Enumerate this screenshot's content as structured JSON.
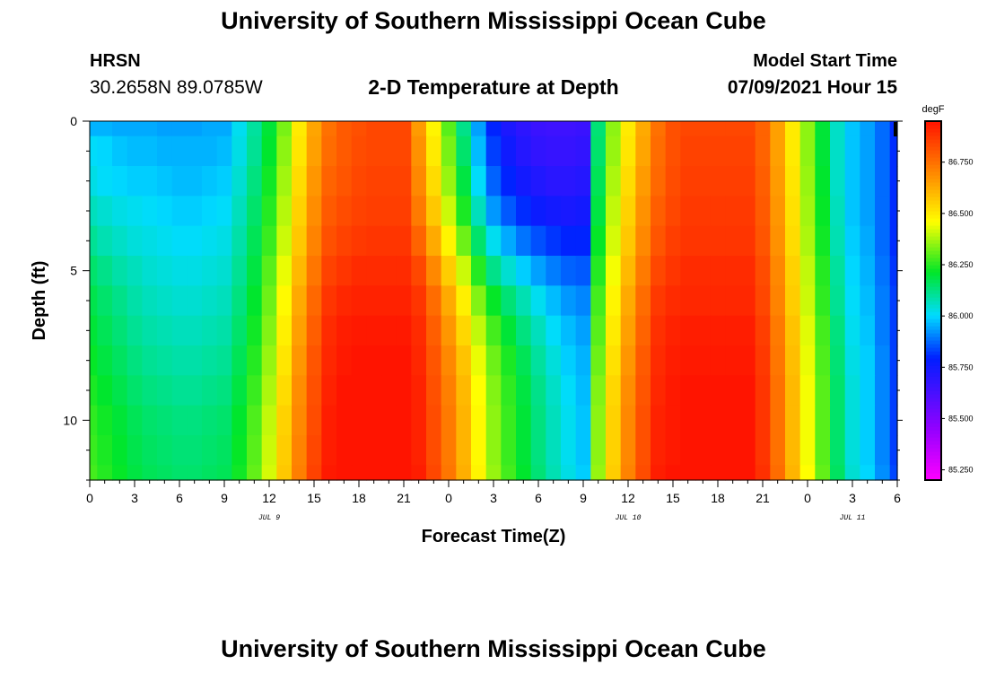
{
  "header": {
    "title": "University of Southern Mississippi Ocean Cube",
    "station": "HRSN",
    "location": "30.2658N  89.0785W",
    "product": "2-D Temperature at Depth",
    "model_label": "Model Start Time",
    "model_time": "07/09/2021 Hour 15"
  },
  "footer": {
    "title": "University of Southern Mississippi Ocean Cube"
  },
  "chart_data": {
    "type": "heatmap",
    "title": "2-D Temperature at Depth",
    "xlabel": "Forecast Time(Z)",
    "ylabel": "Depth (ft)",
    "x_ticks": [
      "0",
      "3",
      "6",
      "9",
      "12",
      "15",
      "18",
      "21",
      "0",
      "3",
      "6",
      "9",
      "12",
      "15",
      "18",
      "21",
      "0",
      "3",
      "6"
    ],
    "x_hours": [
      0,
      3,
      6,
      9,
      12,
      15,
      18,
      21,
      24,
      27,
      30,
      33,
      36,
      39,
      42,
      45,
      48,
      51,
      54
    ],
    "x_range": [
      0,
      54
    ],
    "y_ticks": [
      "0",
      "5",
      "10"
    ],
    "y_values": [
      0,
      5,
      10
    ],
    "y_range": [
      0,
      12
    ],
    "date_labels": [
      {
        "text": "JUL 9",
        "hour": 12
      },
      {
        "text": "JUL 10",
        "hour": 36
      },
      {
        "text": "JUL 11",
        "hour": 51
      }
    ],
    "colorbar": {
      "unit": "degF",
      "min": 85.2,
      "max": 86.95,
      "ticks": [
        "85.250",
        "85.500",
        "85.750",
        "86.000",
        "86.250",
        "86.500",
        "86.750"
      ],
      "tick_values": [
        85.25,
        85.5,
        85.75,
        86.0,
        86.25,
        86.5,
        86.75
      ]
    },
    "grid": {
      "hours": [
        0,
        1,
        2,
        3,
        4,
        5,
        6,
        7,
        8,
        9,
        10,
        11,
        12,
        13,
        14,
        15,
        16,
        17,
        18,
        19,
        20,
        21,
        22,
        23,
        24,
        25,
        26,
        27,
        28,
        29,
        30,
        31,
        32,
        33,
        34,
        35,
        36,
        37,
        38,
        39,
        40,
        41,
        42,
        43,
        44,
        45,
        46,
        47,
        48,
        49,
        50,
        51,
        52,
        53,
        54
      ],
      "depths": [
        0,
        1,
        2,
        3,
        4,
        5,
        6,
        7,
        8,
        9,
        10,
        11,
        12
      ],
      "values": [
        [
          85.96,
          85.96,
          85.95,
          85.95,
          85.95,
          85.94,
          85.94,
          85.94,
          85.95,
          85.95,
          86.02,
          86.1,
          86.2,
          86.33,
          86.5,
          86.64,
          86.75,
          86.8,
          86.82,
          86.84,
          86.84,
          86.84,
          86.66,
          86.48,
          86.3,
          86.12,
          85.94,
          85.8,
          85.73,
          85.69,
          85.66,
          85.65,
          85.65,
          85.66,
          86.14,
          86.35,
          86.5,
          86.63,
          86.75,
          86.82,
          86.84,
          86.84,
          86.84,
          86.84,
          86.84,
          86.78,
          86.65,
          86.5,
          86.35,
          86.2,
          86.06,
          85.98,
          85.94,
          85.88,
          85.81
        ],
        [
          86.01,
          86.0,
          85.98,
          85.97,
          85.97,
          85.96,
          85.96,
          85.96,
          85.96,
          85.97,
          86.03,
          86.11,
          86.21,
          86.35,
          86.51,
          86.65,
          86.76,
          86.8,
          86.83,
          86.84,
          86.84,
          86.84,
          86.68,
          86.5,
          86.33,
          86.15,
          85.97,
          85.83,
          85.76,
          85.71,
          85.68,
          85.67,
          85.67,
          85.68,
          86.15,
          86.36,
          86.51,
          86.64,
          86.76,
          86.82,
          86.85,
          86.85,
          86.85,
          86.85,
          86.85,
          86.78,
          86.65,
          86.5,
          86.35,
          86.2,
          86.06,
          85.98,
          85.94,
          85.88,
          85.81
        ],
        [
          86.03,
          86.01,
          86.0,
          85.99,
          85.99,
          85.98,
          85.97,
          85.97,
          85.98,
          85.99,
          86.05,
          86.13,
          86.23,
          86.37,
          86.53,
          86.67,
          86.78,
          86.81,
          86.84,
          86.85,
          86.85,
          86.85,
          86.7,
          86.53,
          86.36,
          86.19,
          86.01,
          85.87,
          85.8,
          85.75,
          85.72,
          85.7,
          85.7,
          85.71,
          86.17,
          86.38,
          86.53,
          86.66,
          86.77,
          86.83,
          86.86,
          86.86,
          86.86,
          86.86,
          86.86,
          86.79,
          86.66,
          86.51,
          86.36,
          86.21,
          86.06,
          85.98,
          85.94,
          85.88,
          85.81
        ],
        [
          86.07,
          86.05,
          86.03,
          86.02,
          86.01,
          86.0,
          85.99,
          85.99,
          86.0,
          86.01,
          86.07,
          86.15,
          86.25,
          86.39,
          86.55,
          86.69,
          86.8,
          86.83,
          86.85,
          86.86,
          86.86,
          86.86,
          86.73,
          86.57,
          86.41,
          86.24,
          86.07,
          85.93,
          85.86,
          85.81,
          85.77,
          85.75,
          85.74,
          85.75,
          86.19,
          86.4,
          86.55,
          86.68,
          86.79,
          86.84,
          86.87,
          86.87,
          86.87,
          86.87,
          86.87,
          86.8,
          86.67,
          86.52,
          86.37,
          86.22,
          86.07,
          85.98,
          85.94,
          85.88,
          85.81
        ],
        [
          86.11,
          86.08,
          86.06,
          86.04,
          86.03,
          86.02,
          86.01,
          86.01,
          86.02,
          86.03,
          86.09,
          86.17,
          86.27,
          86.41,
          86.57,
          86.71,
          86.82,
          86.85,
          86.87,
          86.88,
          86.88,
          86.88,
          86.78,
          86.63,
          86.48,
          86.32,
          86.15,
          86.02,
          85.95,
          85.89,
          85.85,
          85.82,
          85.8,
          85.8,
          86.22,
          86.42,
          86.57,
          86.7,
          86.81,
          86.86,
          86.88,
          86.88,
          86.88,
          86.88,
          86.88,
          86.81,
          86.68,
          86.53,
          86.38,
          86.23,
          86.08,
          85.99,
          85.95,
          85.88,
          85.81
        ],
        [
          86.15,
          86.12,
          86.09,
          86.07,
          86.05,
          86.04,
          86.03,
          86.03,
          86.04,
          86.05,
          86.11,
          86.19,
          86.3,
          86.44,
          86.6,
          86.74,
          86.85,
          86.88,
          86.9,
          86.9,
          86.9,
          86.9,
          86.84,
          86.7,
          86.56,
          86.41,
          86.25,
          86.12,
          86.05,
          85.99,
          85.94,
          85.9,
          85.87,
          85.86,
          86.25,
          86.45,
          86.6,
          86.73,
          86.84,
          86.88,
          86.9,
          86.9,
          86.9,
          86.9,
          86.9,
          86.83,
          86.7,
          86.55,
          86.4,
          86.25,
          86.1,
          86.0,
          85.96,
          85.89,
          85.82
        ],
        [
          86.18,
          86.15,
          86.12,
          86.09,
          86.07,
          86.06,
          86.05,
          86.05,
          86.06,
          86.07,
          86.13,
          86.21,
          86.32,
          86.47,
          86.63,
          86.77,
          86.88,
          86.91,
          86.92,
          86.92,
          86.92,
          86.92,
          86.88,
          86.76,
          86.63,
          86.49,
          86.34,
          86.22,
          86.14,
          86.08,
          86.02,
          85.97,
          85.93,
          85.91,
          86.28,
          86.48,
          86.63,
          86.76,
          86.87,
          86.9,
          86.91,
          86.91,
          86.91,
          86.91,
          86.91,
          86.84,
          86.71,
          86.56,
          86.41,
          86.26,
          86.11,
          86.01,
          85.97,
          85.9,
          85.83
        ],
        [
          86.2,
          86.17,
          86.14,
          86.11,
          86.09,
          86.08,
          86.07,
          86.07,
          86.08,
          86.09,
          86.15,
          86.23,
          86.34,
          86.49,
          86.65,
          86.79,
          86.9,
          86.93,
          86.94,
          86.94,
          86.94,
          86.94,
          86.9,
          86.79,
          86.67,
          86.54,
          86.4,
          86.28,
          86.2,
          86.13,
          86.07,
          86.01,
          85.97,
          85.94,
          86.3,
          86.5,
          86.65,
          86.78,
          86.89,
          86.92,
          86.93,
          86.93,
          86.93,
          86.93,
          86.93,
          86.86,
          86.73,
          86.58,
          86.43,
          86.28,
          86.13,
          86.02,
          85.98,
          85.9,
          85.83
        ],
        [
          86.22,
          86.19,
          86.16,
          86.13,
          86.11,
          86.1,
          86.09,
          86.09,
          86.1,
          86.11,
          86.17,
          86.25,
          86.36,
          86.51,
          86.67,
          86.81,
          86.91,
          86.94,
          86.95,
          86.95,
          86.95,
          86.95,
          86.91,
          86.81,
          86.7,
          86.58,
          86.44,
          86.32,
          86.24,
          86.17,
          86.1,
          86.04,
          85.99,
          85.96,
          86.32,
          86.52,
          86.67,
          86.8,
          86.9,
          86.93,
          86.94,
          86.94,
          86.94,
          86.94,
          86.94,
          86.87,
          86.74,
          86.59,
          86.44,
          86.29,
          86.14,
          86.03,
          85.99,
          85.91,
          85.83
        ],
        [
          86.24,
          86.21,
          86.18,
          86.15,
          86.13,
          86.12,
          86.11,
          86.11,
          86.12,
          86.13,
          86.19,
          86.27,
          86.38,
          86.53,
          86.69,
          86.82,
          86.92,
          86.95,
          86.96,
          86.96,
          86.96,
          86.96,
          86.92,
          86.82,
          86.72,
          86.6,
          86.46,
          86.34,
          86.26,
          86.19,
          86.12,
          86.06,
          86.01,
          85.97,
          86.34,
          86.54,
          86.69,
          86.81,
          86.91,
          86.94,
          86.95,
          86.95,
          86.95,
          86.95,
          86.95,
          86.88,
          86.75,
          86.6,
          86.45,
          86.3,
          86.15,
          86.04,
          85.99,
          85.91,
          85.83
        ],
        [
          86.26,
          86.23,
          86.2,
          86.17,
          86.15,
          86.14,
          86.13,
          86.13,
          86.14,
          86.15,
          86.21,
          86.29,
          86.4,
          86.55,
          86.7,
          86.83,
          86.93,
          86.95,
          86.96,
          86.96,
          86.96,
          86.96,
          86.92,
          86.83,
          86.73,
          86.61,
          86.47,
          86.35,
          86.27,
          86.2,
          86.13,
          86.07,
          86.02,
          85.98,
          86.35,
          86.55,
          86.7,
          86.82,
          86.92,
          86.94,
          86.95,
          86.95,
          86.95,
          86.95,
          86.95,
          86.88,
          86.75,
          86.6,
          86.45,
          86.3,
          86.15,
          86.04,
          85.99,
          85.91,
          85.83
        ],
        [
          86.27,
          86.24,
          86.21,
          86.18,
          86.16,
          86.15,
          86.14,
          86.14,
          86.15,
          86.16,
          86.22,
          86.3,
          86.41,
          86.56,
          86.71,
          86.84,
          86.93,
          86.95,
          86.96,
          86.96,
          86.96,
          86.96,
          86.92,
          86.83,
          86.73,
          86.61,
          86.47,
          86.35,
          86.27,
          86.2,
          86.13,
          86.07,
          86.02,
          85.98,
          86.35,
          86.55,
          86.7,
          86.82,
          86.92,
          86.94,
          86.95,
          86.95,
          86.95,
          86.95,
          86.95,
          86.88,
          86.75,
          86.6,
          86.45,
          86.3,
          86.15,
          86.04,
          85.99,
          85.91,
          85.83
        ],
        [
          86.28,
          86.25,
          86.22,
          86.19,
          86.17,
          86.16,
          86.15,
          86.15,
          86.16,
          86.17,
          86.23,
          86.31,
          86.42,
          86.57,
          86.72,
          86.85,
          86.94,
          86.96,
          86.97,
          86.97,
          86.97,
          86.97,
          86.93,
          86.84,
          86.74,
          86.62,
          86.48,
          86.36,
          86.28,
          86.21,
          86.14,
          86.08,
          86.03,
          85.99,
          86.36,
          86.56,
          86.71,
          86.83,
          86.93,
          86.95,
          86.96,
          86.96,
          86.96,
          86.96,
          86.96,
          86.89,
          86.76,
          86.61,
          86.46,
          86.31,
          86.16,
          86.05,
          86.0,
          85.92,
          85.84
        ]
      ]
    }
  }
}
